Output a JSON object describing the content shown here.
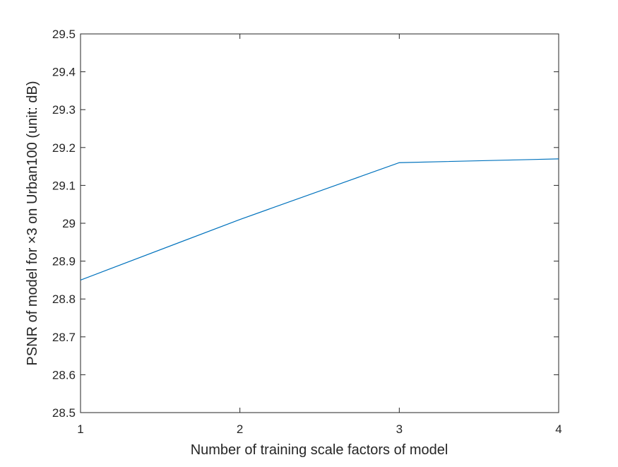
{
  "chart_data": {
    "type": "line",
    "xlabel": "Number of training scale factors of model",
    "ylabel": "PSNR of model for ×3 on Urban100 (unit: dB)",
    "xlim": [
      1,
      4
    ],
    "ylim": [
      28.5,
      29.5
    ],
    "xticks": [
      1,
      2,
      3,
      4
    ],
    "yticks": [
      28.5,
      28.6,
      28.7,
      28.8,
      28.9,
      29.0,
      29.1,
      29.2,
      29.3,
      29.4,
      29.5
    ],
    "xtick_labels": [
      "1",
      "2",
      "3",
      "4"
    ],
    "ytick_labels": [
      "28.5",
      "28.6",
      "28.7",
      "28.8",
      "28.9",
      "29",
      "29.1",
      "29.2",
      "29.3",
      "29.4",
      "29.5"
    ],
    "grid": false,
    "series": [
      {
        "x": [
          1,
          2,
          3,
          4
        ],
        "values": [
          28.85,
          29.01,
          29.16,
          29.17
        ],
        "color": "#0072BD"
      }
    ]
  }
}
